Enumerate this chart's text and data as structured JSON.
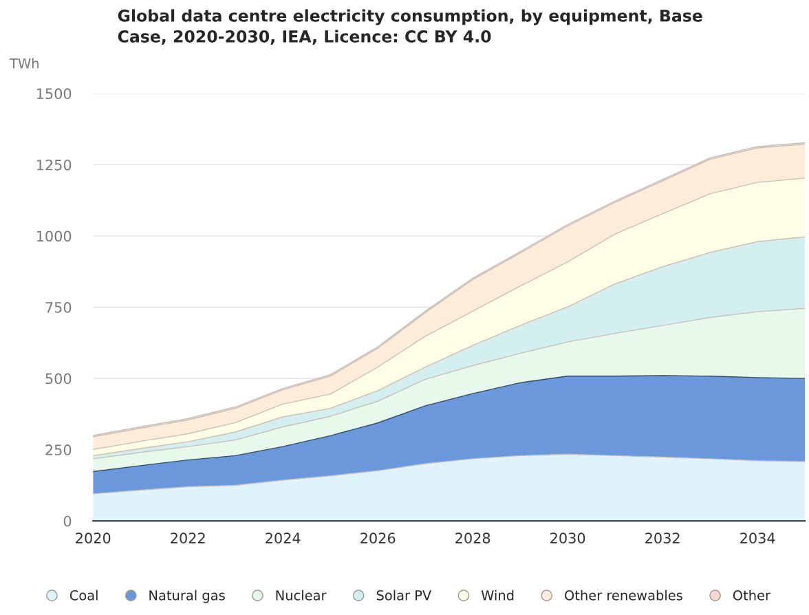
{
  "chart_data": {
    "type": "area",
    "stacked": true,
    "title": "Global data centre electricity consumption, by equipment, Base\nCase, 2020-2030, IEA, Licence: CC BY 4.0",
    "ylabel": "TWh",
    "x": [
      2020,
      2021,
      2022,
      2023,
      2024,
      2025,
      2026,
      2027,
      2028,
      2029,
      2030,
      2031,
      2032,
      2033,
      2034,
      2035
    ],
    "series": [
      {
        "name": "Coal",
        "color": "#dff3fb",
        "values": [
          95,
          108,
          120,
          125,
          143,
          158,
          176,
          201,
          218,
          229,
          234,
          229,
          224,
          218,
          211,
          208
        ]
      },
      {
        "name": "Natural gas",
        "color": "#6a98da",
        "values": [
          78,
          86,
          94,
          104,
          118,
          141,
          168,
          203,
          229,
          256,
          274,
          279,
          286,
          290,
          292,
          292
        ]
      },
      {
        "name": "Nuclear",
        "color": "#e6f9ea",
        "values": [
          45,
          46,
          47,
          55,
          69,
          68,
          76,
          93,
          98,
          103,
          120,
          150,
          176,
          206,
          231,
          246
        ]
      },
      {
        "name": "Solar PV",
        "color": "#d4efef",
        "values": [
          11,
          14,
          17,
          28,
          35,
          28,
          37,
          43,
          71,
          98,
          123,
          174,
          206,
          228,
          246,
          251
        ]
      },
      {
        "name": "Wind",
        "color": "#fefde6",
        "values": [
          22,
          25,
          28,
          33,
          45,
          50,
          83,
          108,
          120,
          138,
          158,
          175,
          186,
          206,
          208,
          206
        ]
      },
      {
        "name": "Other renewables",
        "color": "#fdecd8",
        "values": [
          44,
          46,
          48,
          50,
          50,
          63,
          66,
          83,
          111,
          116,
          126,
          111,
          115,
          121,
          121,
          119
        ]
      },
      {
        "name": "Other",
        "color": "#f8d9cf",
        "values": [
          5,
          5,
          5,
          5,
          5,
          5,
          5,
          5,
          5,
          5,
          5,
          5,
          5,
          5,
          5,
          5
        ]
      }
    ],
    "xlim": [
      2020,
      2035
    ],
    "xticks": [
      2020,
      2022,
      2024,
      2026,
      2028,
      2030,
      2032,
      2034
    ],
    "ylim": [
      0,
      1500
    ],
    "yticks": [
      0,
      250,
      500,
      750,
      1000,
      1250,
      1500
    ],
    "grid": "y",
    "legend": "bottom"
  }
}
